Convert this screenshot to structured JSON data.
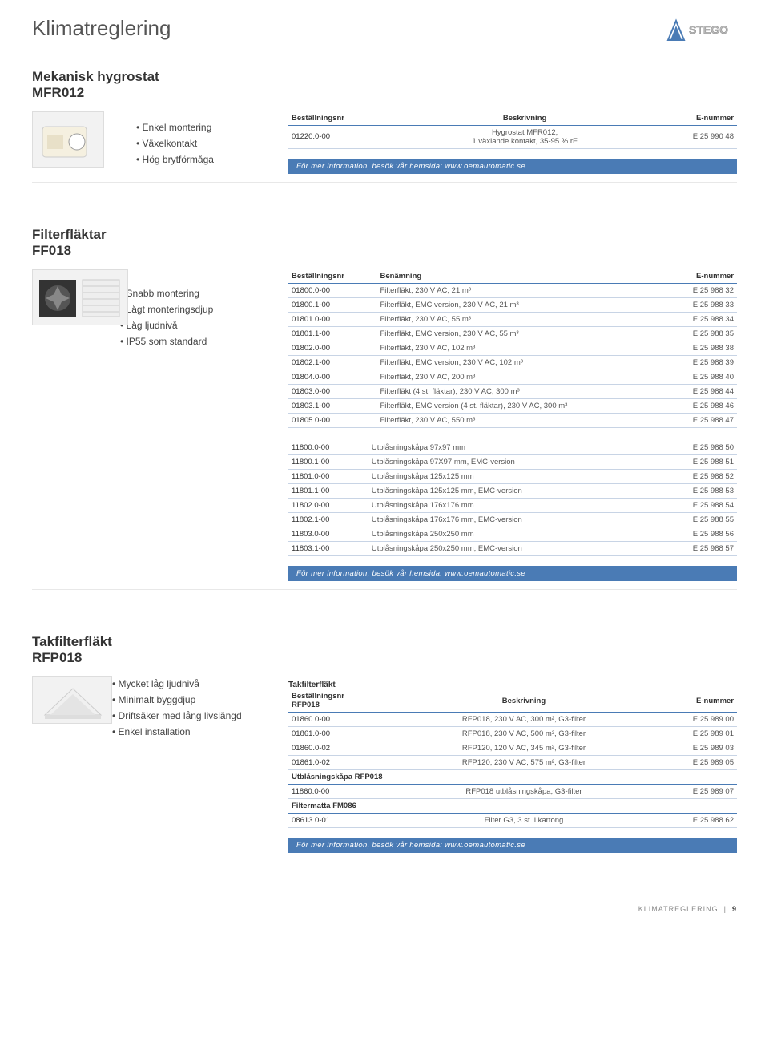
{
  "page": {
    "title": "Klimatreglering",
    "footer_label": "KLIMATREGLERING",
    "footer_page": "9",
    "info_bar": "För mer information, besök vår hemsida: www.oemautomatic.se",
    "logo_text": "STEGO"
  },
  "sections": [
    {
      "title_lines": [
        "Mekanisk hygrostat",
        "MFR012"
      ],
      "bullets": [
        "Enkel montering",
        "Växelkontakt",
        "Hög brytförmåga"
      ],
      "table": {
        "headers": [
          "Beställningsnr",
          "Beskrivning",
          "E-nummer"
        ],
        "align": [
          "left",
          "center",
          "right"
        ],
        "rows": [
          [
            "01220.0-00",
            "Hygrostat MFR012,\n1 växlande kontakt, 35-95 % rF",
            "E 25 990 48"
          ]
        ]
      }
    },
    {
      "title_lines": [
        "Filterfläktar",
        "FF018"
      ],
      "bullets": [
        "Snabb montering",
        "Lågt monteringsdjup",
        "Låg ljudnivå",
        "IP55 som standard"
      ],
      "table": {
        "headers": [
          "Beställningsnr",
          "Benämning",
          "E-nummer"
        ],
        "align": [
          "left",
          "left",
          "right"
        ],
        "rows": [
          [
            "01800.0-00",
            "Filterfläkt, 230 V AC, 21 m³",
            "E 25 988 32"
          ],
          [
            "01800.1-00",
            "Filterfläkt, EMC version, 230 V AC, 21 m³",
            "E 25 988 33"
          ],
          [
            "01801.0-00",
            "Filterfläkt, 230 V AC, 55 m³",
            "E 25 988 34"
          ],
          [
            "01801.1-00",
            "Filterfläkt, EMC version, 230 V AC, 55 m³",
            "E 25 988 35"
          ],
          [
            "01802.0-00",
            "Filterfläkt, 230 V AC, 102 m³",
            "E 25 988 38"
          ],
          [
            "01802.1-00",
            "Filterfläkt, EMC version, 230 V AC, 102 m³",
            "E 25 988 39"
          ],
          [
            "01804.0-00",
            "Filterfläkt, 230 V AC, 200 m³",
            "E 25 988 40"
          ],
          [
            "01803.0-00",
            "Filterfläkt (4 st. fläktar), 230 V AC, 300 m³",
            "E 25 988 44"
          ],
          [
            "01803.1-00",
            "Filterfläkt, EMC version (4 st. fläktar), 230 V AC, 300 m³",
            "E 25 988 46"
          ],
          [
            "01805.0-00",
            "Filterfläkt, 230 V AC, 550 m³",
            "E 25 988 47"
          ]
        ],
        "rows2": [
          [
            "11800.0-00",
            "Utblåsningskåpa 97x97 mm",
            "E 25 988 50"
          ],
          [
            "11800.1-00",
            "Utblåsningskåpa 97X97 mm, EMC-version",
            "E 25 988 51"
          ],
          [
            "11801.0-00",
            "Utblåsningskåpa 125x125 mm",
            "E 25 988 52"
          ],
          [
            "11801.1-00",
            "Utblåsningskåpa 125x125 mm, EMC-version",
            "E 25 988 53"
          ],
          [
            "11802.0-00",
            "Utblåsningskåpa 176x176 mm",
            "E 25 988 54"
          ],
          [
            "11802.1-00",
            "Utblåsningskåpa 176x176 mm, EMC-version",
            "E 25 988 55"
          ],
          [
            "11803.0-00",
            "Utblåsningskåpa 250x250 mm",
            "E 25 988 56"
          ],
          [
            "11803.1-00",
            "Utblåsningskåpa 250x250 mm, EMC-version",
            "E 25 988 57"
          ]
        ]
      }
    },
    {
      "title_lines": [
        "Takfilterfläkt",
        "RFP018"
      ],
      "bullets": [
        "Mycket låg ljudnivå",
        "Minimalt byggdjup",
        "Driftsäker med lång livslängd",
        "Enkel installation"
      ],
      "table3": {
        "sub_title": "Takfilterfläkt",
        "header_lines": [
          "Beställningsnr",
          "RFP018"
        ],
        "headers_rest": [
          "Beskrivning",
          "E-nummer"
        ],
        "rows": [
          [
            "01860.0-00",
            "RFP018, 230 V AC, 300 m², G3-filter",
            "E 25 989 00"
          ],
          [
            "01861.0-00",
            "RFP018, 230 V AC, 500 m², G3-filter",
            "E 25 989 01"
          ],
          [
            "01860.0-02",
            "RFP120, 120 V AC, 345 m², G3-filter",
            "E 25 989 03"
          ],
          [
            "01861.0-02",
            "RFP120, 230 V AC, 575 m², G3-filter",
            "E 25 989 05"
          ]
        ],
        "sub2": "Utblåsningskåpa  RFP018",
        "rows2": [
          [
            "11860.0-00",
            "RFP018 utblåsningskåpa, G3-filter",
            "E 25 989 07"
          ]
        ],
        "sub3": "Filtermatta FM086",
        "rows3": [
          [
            "08613.0-01",
            "Filter G3, 3 st. i kartong",
            "E 25 988 62"
          ]
        ]
      }
    }
  ]
}
